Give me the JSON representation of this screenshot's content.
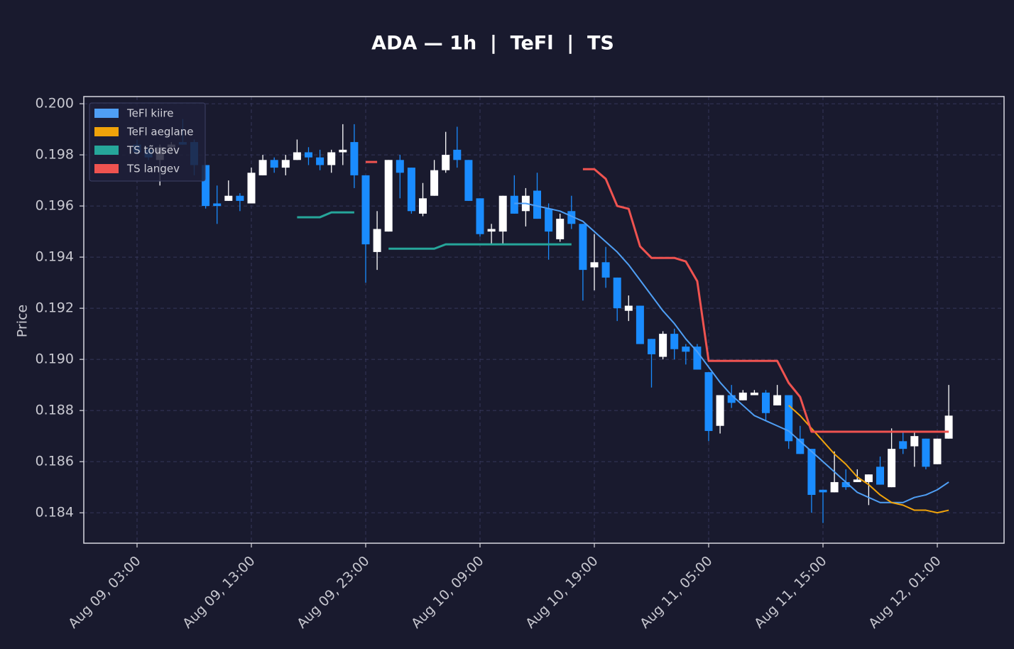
{
  "chart_data": {
    "type": "candlestick",
    "title": "ADA — 1h  |  TeFl  |  TS",
    "ylabel": "Price",
    "x": [
      "Aug 09, 03:00",
      "Aug 09, 04:00",
      "Aug 09, 05:00",
      "Aug 09, 06:00",
      "Aug 09, 07:00",
      "Aug 09, 08:00",
      "Aug 09, 09:00",
      "Aug 09, 10:00",
      "Aug 09, 11:00",
      "Aug 09, 12:00",
      "Aug 09, 13:00",
      "Aug 09, 14:00",
      "Aug 09, 15:00",
      "Aug 09, 16:00",
      "Aug 09, 17:00",
      "Aug 09, 18:00",
      "Aug 09, 19:00",
      "Aug 09, 20:00",
      "Aug 09, 21:00",
      "Aug 09, 22:00",
      "Aug 09, 23:00",
      "Aug 10, 00:00",
      "Aug 10, 01:00",
      "Aug 10, 02:00",
      "Aug 10, 03:00",
      "Aug 10, 04:00",
      "Aug 10, 05:00",
      "Aug 10, 06:00",
      "Aug 10, 07:00",
      "Aug 10, 08:00",
      "Aug 10, 09:00",
      "Aug 10, 10:00",
      "Aug 10, 11:00",
      "Aug 10, 12:00",
      "Aug 10, 13:00",
      "Aug 10, 14:00",
      "Aug 10, 15:00",
      "Aug 10, 16:00",
      "Aug 10, 17:00",
      "Aug 10, 18:00",
      "Aug 10, 19:00",
      "Aug 10, 20:00",
      "Aug 10, 21:00",
      "Aug 10, 22:00",
      "Aug 10, 23:00",
      "Aug 11, 00:00",
      "Aug 11, 01:00",
      "Aug 11, 02:00",
      "Aug 11, 03:00",
      "Aug 11, 04:00",
      "Aug 11, 05:00",
      "Aug 11, 06:00",
      "Aug 11, 07:00",
      "Aug 11, 08:00",
      "Aug 11, 09:00",
      "Aug 11, 10:00",
      "Aug 11, 11:00",
      "Aug 11, 12:00",
      "Aug 11, 13:00",
      "Aug 11, 14:00",
      "Aug 11, 15:00",
      "Aug 11, 16:00",
      "Aug 11, 17:00",
      "Aug 11, 18:00",
      "Aug 11, 19:00",
      "Aug 11, 20:00",
      "Aug 11, 21:00",
      "Aug 11, 22:00",
      "Aug 11, 23:00",
      "Aug 12, 00:00",
      "Aug 12, 01:00",
      "Aug 12, 02:00"
    ],
    "open": [
      0.1984,
      0.1982,
      0.1978,
      0.1983,
      0.1985,
      0.1985,
      0.1976,
      0.1961,
      0.1962,
      0.1964,
      0.1961,
      0.1972,
      0.1978,
      0.1975,
      0.1978,
      0.1981,
      0.1979,
      0.1976,
      0.1981,
      0.1985,
      0.1972,
      0.1942,
      0.195,
      0.1978,
      0.1975,
      0.1957,
      0.1964,
      0.1974,
      0.1982,
      0.1978,
      0.1963,
      0.195,
      0.195,
      0.1964,
      0.1958,
      0.1966,
      0.1959,
      0.1947,
      0.1958,
      0.1953,
      0.1936,
      0.1938,
      0.1932,
      0.1919,
      0.1921,
      0.1908,
      0.1901,
      0.191,
      0.1905,
      0.1905,
      0.1895,
      0.1874,
      0.1886,
      0.1884,
      0.1886,
      0.1887,
      0.1882,
      0.1886,
      0.1869,
      0.1865,
      0.1849,
      0.1848,
      0.1852,
      0.1852,
      0.1852,
      0.1858,
      0.185,
      0.1868,
      0.1866,
      0.1869,
      0.1859,
      0.1869
    ],
    "high": [
      0.1986,
      0.1983,
      0.1984,
      0.1985,
      0.1994,
      0.1986,
      0.1976,
      0.1968,
      0.197,
      0.1965,
      0.1975,
      0.198,
      0.1979,
      0.198,
      0.1986,
      0.1983,
      0.1982,
      0.1982,
      0.1992,
      0.1992,
      0.1972,
      0.1958,
      0.1978,
      0.198,
      0.1975,
      0.1969,
      0.1978,
      0.1989,
      0.1991,
      0.1978,
      0.1963,
      0.1953,
      0.1964,
      0.1972,
      0.1967,
      0.1973,
      0.1961,
      0.1957,
      0.1964,
      0.1953,
      0.1949,
      0.1944,
      0.1932,
      0.1925,
      0.1921,
      0.1908,
      0.1911,
      0.1912,
      0.1906,
      0.1906,
      0.1895,
      0.1886,
      0.189,
      0.1888,
      0.1888,
      0.1888,
      0.189,
      0.1886,
      0.1874,
      0.1865,
      0.1849,
      0.1864,
      0.1857,
      0.1857,
      0.1855,
      0.1862,
      0.1873,
      0.1872,
      0.1872,
      0.1869,
      0.1869,
      0.189
    ],
    "low": [
      0.198,
      0.1978,
      0.1968,
      0.1982,
      0.1984,
      0.1972,
      0.1959,
      0.1953,
      0.1962,
      0.1958,
      0.1961,
      0.1972,
      0.1973,
      0.1972,
      0.1978,
      0.1976,
      0.1974,
      0.1973,
      0.1976,
      0.1967,
      0.193,
      0.1935,
      0.195,
      0.1963,
      0.1957,
      0.1956,
      0.1964,
      0.1973,
      0.1975,
      0.1962,
      0.1948,
      0.1945,
      0.1945,
      0.1957,
      0.1952,
      0.1955,
      0.1939,
      0.1946,
      0.1951,
      0.1923,
      0.1927,
      0.1928,
      0.1915,
      0.1915,
      0.1906,
      0.1889,
      0.19,
      0.19,
      0.1898,
      0.1896,
      0.1868,
      0.1871,
      0.1881,
      0.1884,
      0.1886,
      0.1876,
      0.1882,
      0.1865,
      0.1863,
      0.184,
      0.1836,
      0.1848,
      0.1849,
      0.1852,
      0.1843,
      0.1851,
      0.185,
      0.1863,
      0.1858,
      0.1857,
      0.1859,
      0.1869
    ],
    "close": [
      0.1981,
      0.1979,
      0.1983,
      0.1984,
      0.1984,
      0.1976,
      0.196,
      0.196,
      0.1964,
      0.1962,
      0.1973,
      0.1978,
      0.1975,
      0.1978,
      0.1981,
      0.1979,
      0.1976,
      0.1981,
      0.1982,
      0.1972,
      0.1945,
      0.1951,
      0.1978,
      0.1973,
      0.1958,
      0.1963,
      0.1974,
      0.198,
      0.1978,
      0.1962,
      0.1949,
      0.1951,
      0.1964,
      0.1957,
      0.1964,
      0.1955,
      0.195,
      0.1955,
      0.1953,
      0.1935,
      0.1938,
      0.1932,
      0.192,
      0.1921,
      0.1906,
      0.1902,
      0.191,
      0.1904,
      0.1903,
      0.1896,
      0.1872,
      0.1886,
      0.1883,
      0.1887,
      0.1887,
      0.1879,
      0.1886,
      0.1868,
      0.1863,
      0.1847,
      0.1848,
      0.1852,
      0.185,
      0.1853,
      0.1855,
      0.1851,
      0.1865,
      0.1865,
      0.187,
      0.1858,
      0.1869,
      0.1878
    ],
    "up_color": "#ffffff",
    "down_color": "#1a8cff",
    "series": [
      {
        "name": "TeFl kiire",
        "color": "#4f9ff5",
        "width": 2,
        "values": [
          null,
          null,
          null,
          null,
          null,
          null,
          null,
          null,
          null,
          null,
          null,
          null,
          null,
          null,
          null,
          null,
          null,
          null,
          null,
          null,
          null,
          null,
          null,
          null,
          null,
          null,
          null,
          null,
          null,
          null,
          null,
          null,
          null,
          0.1961,
          0.1961,
          0.196,
          0.1959,
          0.1958,
          0.1956,
          0.1954,
          0.195,
          0.1946,
          0.1942,
          0.1937,
          0.1931,
          0.1925,
          0.1919,
          0.1914,
          0.1908,
          0.1903,
          0.1897,
          0.1891,
          0.1886,
          0.1882,
          0.1878,
          0.1876,
          0.1874,
          0.1872,
          0.1868,
          0.1864,
          0.186,
          0.1856,
          0.1852,
          0.1848,
          0.1846,
          0.1844,
          0.1844,
          0.1844,
          0.1846,
          0.1847,
          0.1849,
          0.1852
        ]
      },
      {
        "name": "TeFl aeglane",
        "color": "#f0a30a",
        "width": 2,
        "values": [
          null,
          null,
          null,
          null,
          null,
          null,
          null,
          null,
          null,
          null,
          null,
          null,
          null,
          null,
          null,
          null,
          null,
          null,
          null,
          null,
          null,
          null,
          null,
          null,
          null,
          null,
          null,
          null,
          null,
          null,
          null,
          null,
          null,
          null,
          null,
          null,
          null,
          null,
          null,
          null,
          null,
          null,
          null,
          null,
          null,
          null,
          null,
          null,
          null,
          null,
          null,
          null,
          null,
          null,
          null,
          null,
          null,
          0.1882,
          0.1878,
          0.1873,
          0.1868,
          0.1863,
          0.1859,
          0.1854,
          0.1851,
          0.1847,
          0.1844,
          0.1843,
          0.1841,
          0.1841,
          0.184,
          0.1841
        ]
      },
      {
        "name": "TS tõusev",
        "color": "#26a69a",
        "width": 3,
        "values": [
          null,
          null,
          null,
          null,
          null,
          null,
          null,
          null,
          null,
          null,
          null,
          null,
          null,
          null,
          0.19556,
          0.19556,
          0.19556,
          0.19575,
          0.19575,
          0.19575,
          null,
          null,
          0.19433,
          0.19433,
          0.19433,
          0.19433,
          0.19433,
          0.1945,
          0.1945,
          0.1945,
          0.1945,
          0.1945,
          0.1945,
          0.1945,
          0.1945,
          0.1945,
          0.1945,
          0.1945,
          0.1945,
          null,
          null,
          null,
          null,
          null,
          null,
          null,
          null,
          null,
          null,
          null,
          null,
          null,
          null,
          null,
          null,
          null,
          null,
          null,
          null,
          null,
          null,
          null,
          null,
          null,
          null,
          null,
          null,
          null,
          null,
          null,
          null,
          null
        ]
      },
      {
        "name": "TS langev",
        "color": "#ef5350",
        "width": 3,
        "values": [
          null,
          null,
          null,
          null,
          null,
          null,
          null,
          null,
          null,
          null,
          null,
          null,
          null,
          null,
          null,
          null,
          null,
          null,
          null,
          null,
          0.19772,
          0.19772,
          null,
          null,
          null,
          null,
          null,
          null,
          null,
          null,
          null,
          null,
          null,
          null,
          null,
          null,
          null,
          null,
          null,
          0.19744,
          0.19744,
          0.19706,
          0.196,
          0.19589,
          0.19442,
          0.19397,
          0.19397,
          0.19397,
          0.19383,
          0.19306,
          0.18994,
          0.18994,
          0.18994,
          0.18994,
          0.18994,
          0.18994,
          0.18994,
          0.18908,
          0.18853,
          0.18717,
          0.18717,
          0.18717,
          0.18717,
          0.18717,
          0.18717,
          0.18717,
          0.18717,
          0.18717,
          0.18717,
          0.18717,
          0.18717,
          0.18717
        ]
      }
    ],
    "ylim": [
      0.18281,
      0.20028
    ],
    "yticks": [
      0.184,
      0.186,
      0.188,
      {
        "value": 0.19,
        "label": "0.190"
      },
      0.192,
      0.194,
      0.196,
      0.198,
      {
        "value": 0.2,
        "label": "0.200"
      }
    ],
    "xticks": [
      "Aug 09, 03:00",
      "Aug 09, 13:00",
      "Aug 09, 23:00",
      "Aug 10, 09:00",
      "Aug 10, 19:00",
      "Aug 11, 05:00",
      "Aug 11, 15:00",
      "Aug 12, 01:00"
    ],
    "grid": true,
    "legend": "upper left"
  }
}
